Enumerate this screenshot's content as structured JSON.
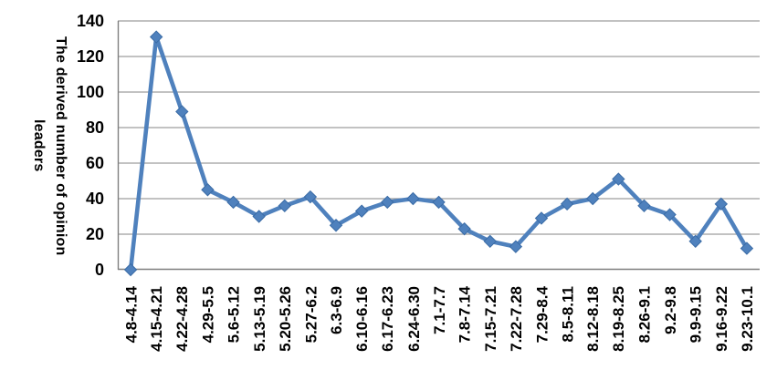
{
  "chart_data": {
    "type": "line",
    "title": "",
    "xlabel": "",
    "ylabel": "The derived number of opinion leaders",
    "categories": [
      "4.8-4.14",
      "4.15-4.21",
      "4.22-4.28",
      "4.29-5.5",
      "5.6-5.12",
      "5.13-5.19",
      "5.20-5.26",
      "5.27-6.2",
      "6.3-6.9",
      "6.10-6.16",
      "6.17-6.23",
      "6.24-6.30",
      "7.1-7.7",
      "7.8-7.14",
      "7.15-7.21",
      "7.22-7.28",
      "7.29-8.4",
      "8.5-8.11",
      "8.12-8.18",
      "8.19-8.25",
      "8.26-9.1",
      "9.2-9.8",
      "9.9-9.15",
      "9.16-9.22",
      "9.23-10.1"
    ],
    "series": [
      {
        "values": [
          0,
          131,
          89,
          45,
          38,
          30,
          36,
          41,
          25,
          33,
          38,
          40,
          38,
          23,
          16,
          13,
          29,
          37,
          40,
          51,
          36,
          31,
          16,
          37,
          12
        ]
      }
    ],
    "ylim": [
      0,
      140
    ],
    "yticks": [
      0,
      20,
      40,
      60,
      80,
      100,
      120,
      140
    ],
    "grid": "horizontal",
    "legend": "none",
    "marker": "diamond",
    "colors": {
      "line": "#4F81BD",
      "marker_fill": "#4F81BD",
      "marker_edge": "#3A6BA5",
      "gridline": "#9E9E9E",
      "axis": "#7F7F7F",
      "text": "#000000"
    }
  }
}
